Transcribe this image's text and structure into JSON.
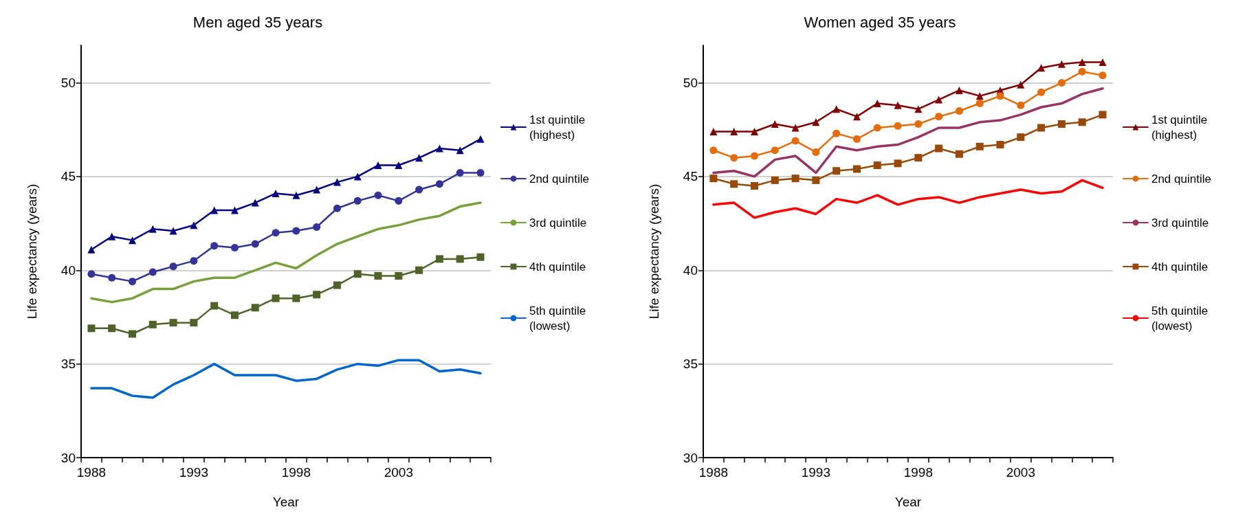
{
  "chart_data": [
    {
      "type": "line",
      "title": "Men aged 35 years",
      "xlabel": "Year",
      "ylabel": "Life expectancy (years)",
      "categories": [
        "1988",
        null,
        null,
        null,
        null,
        "1993",
        null,
        null,
        null,
        null,
        "1998",
        null,
        null,
        null,
        null,
        "2003",
        null,
        null,
        null,
        null
      ],
      "ylim": [
        30,
        52
      ],
      "yticks": [
        30,
        35,
        40,
        45,
        50
      ],
      "grid": "y",
      "legend": "right",
      "series": [
        {
          "name": "1st quintile (highest)",
          "color": "#000080",
          "marker": "triangle",
          "values": [
            41.1,
            41.8,
            41.6,
            42.2,
            42.1,
            42.4,
            43.2,
            43.2,
            43.6,
            44.1,
            44.0,
            44.3,
            44.7,
            45.0,
            45.6,
            45.6,
            46.0,
            46.5,
            46.4,
            47.0
          ]
        },
        {
          "name": "2nd quintile",
          "color": "#333399",
          "marker": "circle",
          "values": [
            39.8,
            39.6,
            39.4,
            39.9,
            40.2,
            40.5,
            41.3,
            41.2,
            41.4,
            42.0,
            42.1,
            42.3,
            43.3,
            43.7,
            44.0,
            43.7,
            44.3,
            44.6,
            45.2,
            45.2
          ]
        },
        {
          "name": "3rd quintile",
          "color": "#77a03a",
          "marker": "none",
          "values": [
            38.5,
            38.3,
            38.5,
            39.0,
            39.0,
            39.4,
            39.6,
            39.6,
            40.0,
            40.4,
            40.1,
            40.8,
            41.4,
            41.8,
            42.2,
            42.4,
            42.7,
            42.9,
            43.4,
            43.6
          ]
        },
        {
          "name": "4th quintile",
          "color": "#4f6228",
          "marker": "square",
          "values": [
            36.9,
            36.9,
            36.6,
            37.1,
            37.2,
            37.2,
            38.1,
            37.6,
            38.0,
            38.5,
            38.5,
            38.7,
            39.2,
            39.8,
            39.7,
            39.7,
            40.0,
            40.6,
            40.6,
            40.7
          ]
        },
        {
          "name": "5th quintile (lowest)",
          "color": "#0066cc",
          "marker": "none",
          "values": [
            33.7,
            33.7,
            33.3,
            33.2,
            33.9,
            34.4,
            35.0,
            34.4,
            34.4,
            34.4,
            34.1,
            34.2,
            34.7,
            35.0,
            34.9,
            35.2,
            35.2,
            34.6,
            34.7,
            34.5
          ]
        }
      ]
    },
    {
      "type": "line",
      "title": "Women aged 35 years",
      "xlabel": "Year",
      "ylabel": "Life expectancy (years)",
      "categories": [
        "1988",
        null,
        null,
        null,
        null,
        "1993",
        null,
        null,
        null,
        null,
        "1998",
        null,
        null,
        null,
        null,
        "2003",
        null,
        null,
        null,
        null
      ],
      "ylim": [
        30,
        52
      ],
      "yticks": [
        30,
        35,
        40,
        45,
        50
      ],
      "grid": "y",
      "legend": "right",
      "series": [
        {
          "name": "1st quintile (highest)",
          "color": "#800000",
          "marker": "triangle",
          "values": [
            47.4,
            47.4,
            47.4,
            47.8,
            47.6,
            47.9,
            48.6,
            48.2,
            48.9,
            48.8,
            48.6,
            49.1,
            49.6,
            49.3,
            49.6,
            49.9,
            50.8,
            51.0,
            51.1,
            51.1
          ]
        },
        {
          "name": "2nd quintile",
          "color": "#e46c0a",
          "marker": "circle",
          "values": [
            46.4,
            46.0,
            46.1,
            46.4,
            46.9,
            46.3,
            47.3,
            47.0,
            47.6,
            47.7,
            47.8,
            48.2,
            48.5,
            48.9,
            49.3,
            48.8,
            49.5,
            50.0,
            50.6,
            50.4
          ]
        },
        {
          "name": "3rd quintile",
          "color": "#993366",
          "marker": "none",
          "values": [
            45.2,
            45.3,
            45.0,
            45.9,
            46.1,
            45.2,
            46.6,
            46.4,
            46.6,
            46.7,
            47.1,
            47.6,
            47.6,
            47.9,
            48.0,
            48.3,
            48.7,
            48.9,
            49.4,
            49.7
          ]
        },
        {
          "name": "4th quintile",
          "color": "#984807",
          "marker": "square",
          "values": [
            44.9,
            44.6,
            44.5,
            44.8,
            44.9,
            44.8,
            45.3,
            45.4,
            45.6,
            45.7,
            46.0,
            46.5,
            46.2,
            46.6,
            46.7,
            47.1,
            47.6,
            47.8,
            47.9,
            48.3
          ]
        },
        {
          "name": "5th quintile (lowest)",
          "color": "#ff0000",
          "marker": "none",
          "values": [
            43.5,
            43.6,
            42.8,
            43.1,
            43.3,
            43.0,
            43.8,
            43.6,
            44.0,
            43.5,
            43.8,
            43.9,
            43.6,
            43.9,
            44.1,
            44.3,
            44.1,
            44.2,
            44.8,
            44.4
          ]
        }
      ]
    }
  ]
}
